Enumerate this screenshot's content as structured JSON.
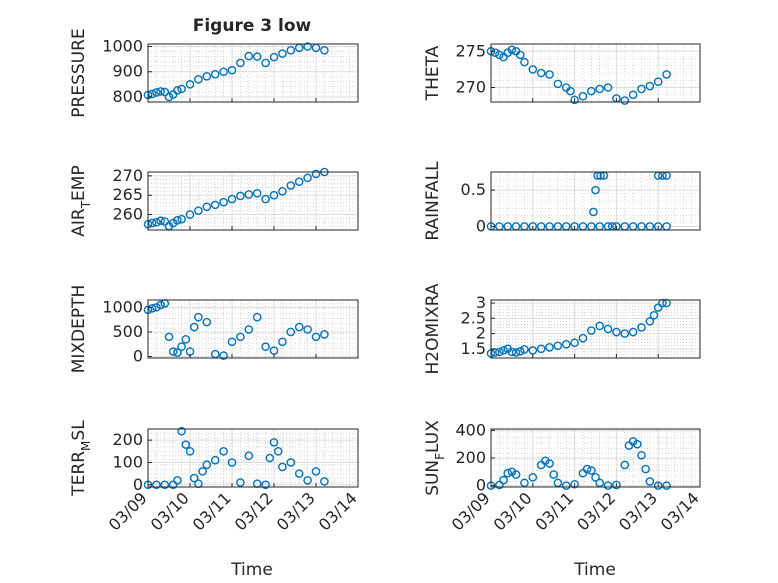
{
  "figure": {
    "title": "Figure 3 low",
    "xlabel": "Time",
    "x_ticks": [
      "03/09",
      "03/10",
      "03/11",
      "03/12",
      "03/13",
      "03/14"
    ],
    "colors": {
      "marker": "#0072BD",
      "axis": "#262626",
      "grid": "#bfbfbf"
    }
  },
  "chart_data": [
    {
      "type": "scatter",
      "ylabel_main": "PRESSURE",
      "ylabel_sub": "",
      "ylabel_tail": "",
      "ylim": [
        780,
        1010
      ],
      "yticks": [
        800,
        900,
        1000
      ],
      "xlim": [
        0,
        5
      ],
      "x": [
        0.0,
        0.1,
        0.2,
        0.3,
        0.4,
        0.5,
        0.6,
        0.7,
        0.8,
        1.0,
        1.2,
        1.4,
        1.6,
        1.8,
        2.0,
        2.2,
        2.4,
        2.6,
        2.8,
        3.0,
        3.2,
        3.4,
        3.6,
        3.8,
        4.0,
        4.2
      ],
      "y": [
        808,
        812,
        818,
        822,
        820,
        800,
        810,
        826,
        832,
        850,
        870,
        882,
        890,
        900,
        906,
        935,
        962,
        960,
        935,
        958,
        972,
        985,
        995,
        1000,
        995,
        985
      ]
    },
    {
      "type": "scatter",
      "ylabel_main": "THETA",
      "ylabel_sub": "",
      "ylabel_tail": "",
      "ylim": [
        268,
        276
      ],
      "yticks": [
        270,
        275
      ],
      "xlim": [
        0,
        5
      ],
      "x": [
        0.0,
        0.1,
        0.2,
        0.3,
        0.4,
        0.5,
        0.6,
        0.7,
        0.8,
        1.0,
        1.2,
        1.4,
        1.6,
        1.8,
        1.9,
        2.0,
        2.2,
        2.4,
        2.6,
        2.8,
        3.0,
        3.2,
        3.4,
        3.6,
        3.8,
        4.0,
        4.2
      ],
      "y": [
        275.0,
        274.8,
        274.5,
        274.2,
        274.8,
        275.2,
        275.0,
        274.5,
        273.5,
        272.5,
        272.0,
        271.8,
        270.5,
        270.0,
        269.5,
        268.3,
        268.8,
        269.5,
        269.8,
        270.0,
        268.5,
        268.2,
        269.0,
        269.8,
        270.2,
        270.8,
        271.8
      ]
    },
    {
      "type": "scatter",
      "ylabel_main": "AIR",
      "ylabel_sub": "T",
      "ylabel_tail": "EMP",
      "ylim": [
        256,
        271
      ],
      "yticks": [
        260,
        265,
        270
      ],
      "xlim": [
        0,
        5
      ],
      "x": [
        0.0,
        0.1,
        0.2,
        0.3,
        0.4,
        0.5,
        0.6,
        0.7,
        0.8,
        1.0,
        1.2,
        1.4,
        1.6,
        1.8,
        2.0,
        2.2,
        2.4,
        2.6,
        2.8,
        3.0,
        3.2,
        3.4,
        3.6,
        3.8,
        4.0,
        4.2
      ],
      "y": [
        257.5,
        257.8,
        258.0,
        258.4,
        258.2,
        257.0,
        257.8,
        258.5,
        258.8,
        260.0,
        261.0,
        262.0,
        262.5,
        263.2,
        264.0,
        264.8,
        265.2,
        265.5,
        264.0,
        265.0,
        266.0,
        267.5,
        268.5,
        269.5,
        270.5,
        271.0
      ]
    },
    {
      "type": "scatter",
      "ylabel_main": "RAINFALL",
      "ylabel_sub": "",
      "ylabel_tail": "",
      "ylim": [
        -0.05,
        0.75
      ],
      "yticks": [
        0,
        0.5
      ],
      "xlim": [
        0,
        5
      ],
      "x": [
        0.0,
        0.2,
        0.4,
        0.6,
        0.8,
        1.0,
        1.2,
        1.4,
        1.6,
        1.8,
        2.0,
        2.2,
        2.4,
        2.6,
        2.8,
        2.9,
        3.0,
        3.2,
        3.4,
        3.6,
        3.8,
        4.0,
        4.2,
        2.45,
        2.5,
        2.55,
        2.62,
        2.7,
        4.0,
        4.1,
        4.2
      ],
      "y": [
        0,
        0,
        0,
        0,
        0,
        0,
        0,
        0,
        0,
        0,
        0,
        0,
        0,
        0,
        0,
        0,
        0,
        0,
        0,
        0,
        0,
        0,
        0,
        0.2,
        0.5,
        0.7,
        0.7,
        0.7,
        0.7,
        0.7,
        0.7
      ]
    },
    {
      "type": "scatter",
      "ylabel_main": "MIXDEPTH",
      "ylabel_sub": "",
      "ylabel_tail": "",
      "ylim": [
        -30,
        1150
      ],
      "yticks": [
        0,
        500,
        1000
      ],
      "xlim": [
        0,
        5
      ],
      "x": [
        0.0,
        0.1,
        0.2,
        0.3,
        0.4,
        0.5,
        0.6,
        0.7,
        0.8,
        0.9,
        1.0,
        1.1,
        1.2,
        1.4,
        1.6,
        1.8,
        2.0,
        2.2,
        2.4,
        2.6,
        2.8,
        3.0,
        3.2,
        3.4,
        3.6,
        3.8,
        4.0,
        4.2
      ],
      "y": [
        950,
        980,
        1000,
        1050,
        1080,
        400,
        100,
        80,
        200,
        350,
        100,
        600,
        800,
        700,
        50,
        20,
        300,
        400,
        550,
        800,
        200,
        120,
        300,
        500,
        600,
        550,
        400,
        450
      ]
    },
    {
      "type": "scatter",
      "ylabel_main": "H2OMIXRA",
      "ylabel_sub": "",
      "ylabel_tail": "",
      "ylim": [
        1.2,
        3.1
      ],
      "yticks": [
        1.5,
        2,
        2.5,
        3
      ],
      "xlim": [
        0,
        5
      ],
      "x": [
        0.0,
        0.1,
        0.2,
        0.3,
        0.4,
        0.5,
        0.6,
        0.7,
        0.8,
        1.0,
        1.2,
        1.4,
        1.6,
        1.8,
        2.0,
        2.2,
        2.4,
        2.6,
        2.8,
        3.0,
        3.2,
        3.4,
        3.6,
        3.8,
        3.9,
        4.0,
        4.1,
        4.2
      ],
      "y": [
        1.35,
        1.38,
        1.4,
        1.45,
        1.5,
        1.4,
        1.38,
        1.42,
        1.48,
        1.45,
        1.5,
        1.55,
        1.6,
        1.65,
        1.7,
        1.85,
        2.1,
        2.25,
        2.15,
        2.05,
        2.0,
        2.05,
        2.2,
        2.4,
        2.6,
        2.85,
        3.0,
        3.0
      ]
    },
    {
      "type": "scatter",
      "ylabel_main": "TERR",
      "ylabel_sub": "M",
      "ylabel_tail": "SL",
      "ylim": [
        -10,
        250
      ],
      "yticks": [
        0,
        100,
        200
      ],
      "xlim": [
        0,
        5
      ],
      "x": [
        0.0,
        0.2,
        0.4,
        0.6,
        0.7,
        0.8,
        0.9,
        1.0,
        1.1,
        1.2,
        1.3,
        1.4,
        1.6,
        1.8,
        2.0,
        2.2,
        2.4,
        2.6,
        2.8,
        2.9,
        3.0,
        3.1,
        3.2,
        3.4,
        3.6,
        3.8,
        4.0,
        4.2
      ],
      "y": [
        0,
        0,
        0,
        0,
        20,
        240,
        180,
        150,
        30,
        5,
        60,
        90,
        110,
        150,
        100,
        10,
        130,
        5,
        0,
        120,
        190,
        150,
        80,
        100,
        50,
        20,
        60,
        15
      ]
    },
    {
      "type": "scatter",
      "ylabel_main": "SUN",
      "ylabel_sub": "F",
      "ylabel_tail": "LUX",
      "ylim": [
        -10,
        410
      ],
      "yticks": [
        0,
        200,
        400
      ],
      "xlim": [
        0,
        5
      ],
      "x": [
        0.0,
        0.2,
        0.3,
        0.4,
        0.5,
        0.6,
        0.8,
        1.0,
        1.2,
        1.3,
        1.4,
        1.5,
        1.6,
        1.8,
        2.0,
        2.2,
        2.3,
        2.4,
        2.5,
        2.6,
        2.8,
        3.0,
        3.2,
        3.3,
        3.4,
        3.5,
        3.6,
        3.7,
        3.8,
        4.0,
        4.2
      ],
      "y": [
        0,
        5,
        40,
        90,
        100,
        80,
        20,
        60,
        150,
        180,
        160,
        80,
        20,
        0,
        10,
        90,
        120,
        110,
        60,
        20,
        0,
        5,
        150,
        290,
        320,
        300,
        220,
        120,
        30,
        0,
        0
      ]
    }
  ]
}
